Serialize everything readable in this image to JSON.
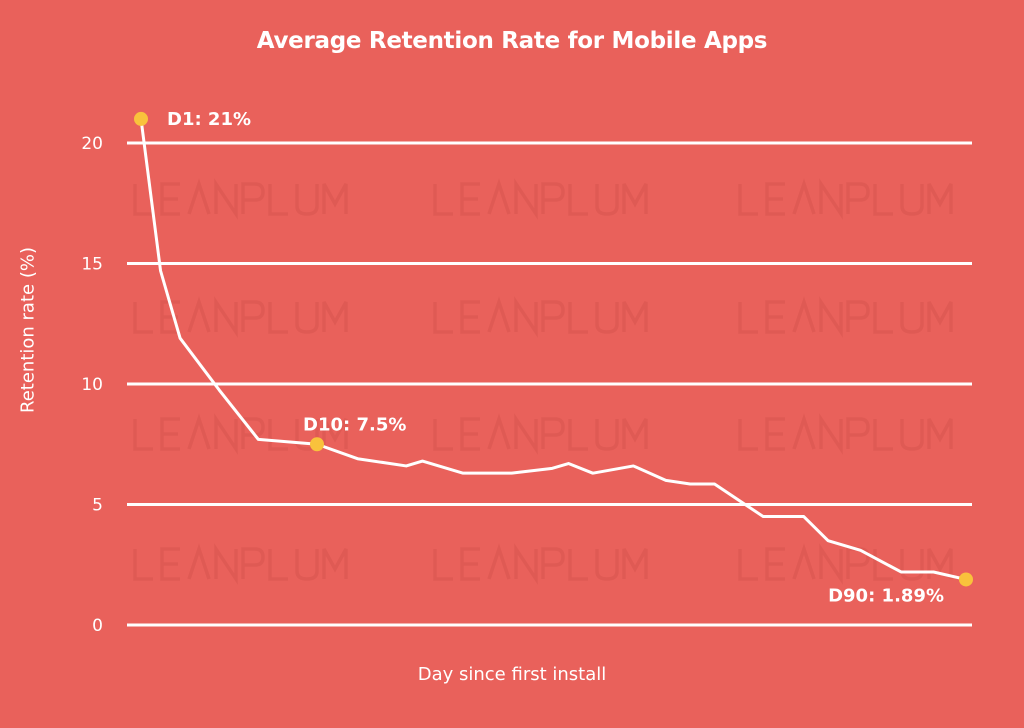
{
  "chart_data": {
    "type": "line",
    "title": "Average Retention Rate for Mobile Apps",
    "xlabel": "Day since first install",
    "ylabel": "Retention rate (%)",
    "ylim": [
      0,
      20
    ],
    "yticks": [
      "0",
      "5",
      "10",
      "15",
      "20"
    ],
    "grid": "horizontal",
    "watermark": "LEANPLUM",
    "colors": {
      "background": "#E9615B",
      "line": "#FFFFFF",
      "marker": "#F9C23C"
    },
    "series": [
      {
        "x": [
          1,
          2,
          3,
          5,
          7,
          10,
          15,
          21,
          23,
          28,
          34,
          39,
          41,
          44,
          49,
          53,
          56,
          59,
          65,
          70,
          73,
          77,
          82,
          86,
          90
        ],
        "y": [
          21,
          14.7,
          11.9,
          9.75,
          7.7,
          7.5,
          6.9,
          6.6,
          6.8,
          6.3,
          6.3,
          6.5,
          6.7,
          6.3,
          6.6,
          6.0,
          5.85,
          5.85,
          4.5,
          4.5,
          3.5,
          3.1,
          2.2,
          2.2,
          1.89
        ]
      }
    ],
    "annotations": [
      {
        "x": 1,
        "y": 21,
        "text": "D1: 21%"
      },
      {
        "x": 10,
        "y": 7.5,
        "text": "D10: 7.5%"
      },
      {
        "x": 90,
        "y": 1.89,
        "text": "D90: 1.89%"
      }
    ]
  }
}
